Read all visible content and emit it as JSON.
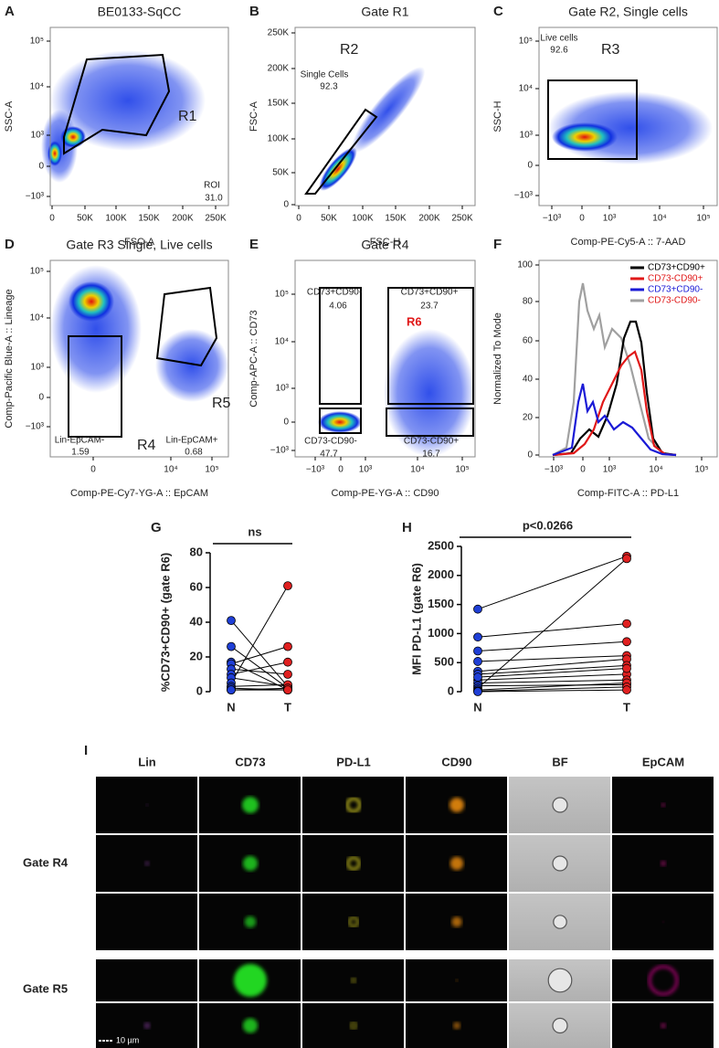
{
  "panels": [
    {
      "letter": "A",
      "title": "BE0133-SqCC",
      "x_label": "FSC-A",
      "y_label": "SSC-A",
      "xticks": [
        "0",
        "50K",
        "100K",
        "150K",
        "200K",
        "250K"
      ],
      "yticks": [
        "10⁵",
        "10⁴",
        "10³",
        "0",
        "−10³"
      ],
      "annotations": [
        "R1",
        "ROI",
        "31.0"
      ]
    },
    {
      "letter": "B",
      "title": "Gate R1",
      "x_label": "FSC-H",
      "y_label": "FSC-A",
      "xticks": [
        "0",
        "50K",
        "100K",
        "150K",
        "200K",
        "250K"
      ],
      "yticks": [
        "250K",
        "200K",
        "150K",
        "100K",
        "50K",
        "0"
      ],
      "annotations": [
        "R2",
        "Single Cells",
        "92.3"
      ]
    },
    {
      "letter": "C",
      "title": "Gate R2, Single cells",
      "x_label": "Comp-PE-Cy5-A :: 7-AAD",
      "y_label": "SSC-H",
      "xticks": [
        "−10³",
        "0",
        "10³",
        "10⁴",
        "10⁵"
      ],
      "yticks": [
        "10⁵",
        "10⁴",
        "10³",
        "0",
        "−10³"
      ],
      "annotations": [
        "Live cells",
        "92.6",
        "R3"
      ]
    },
    {
      "letter": "D",
      "title": "Gate R3 Single, Live cells",
      "x_label": "Comp-PE-Cy7-YG-A :: EpCAM",
      "y_label": "Comp-Pacific Blue-A :: Lineage",
      "xticks": [
        "0",
        "10⁴",
        "10⁵"
      ],
      "yticks": [
        "10⁵",
        "10⁴",
        "10³",
        "0",
        "−10³"
      ],
      "annotations": [
        "Lin-EpCAM-",
        "1.59",
        "R4",
        "Lin-EpCAM+",
        "0.68",
        "R5"
      ]
    },
    {
      "letter": "E",
      "title": "Gate R4",
      "x_label": "Comp-PE-YG-A :: CD90",
      "y_label": "Comp-APC-A :: CD73",
      "xticks": [
        "−10³",
        "0",
        "10³",
        "10⁴",
        "10⁵"
      ],
      "yticks": [
        "10⁵",
        "10⁴",
        "10³",
        "0",
        "−10³"
      ],
      "annotations": [
        "CD73+CD90-",
        "4.06",
        "CD73+CD90+",
        "23.7",
        "R6",
        "CD73-CD90-",
        "47.7",
        "CD73-CD90+",
        "16.7"
      ]
    },
    {
      "letter": "F",
      "title": "",
      "x_label": "Comp-FITC-A :: PD-L1",
      "y_label": "Normalized To Mode",
      "xticks": [
        "−10³",
        "0",
        "10³",
        "10⁴",
        "10⁵"
      ],
      "yticks": [
        "100",
        "80",
        "60",
        "40",
        "20",
        "0"
      ],
      "legend": [
        {
          "name": "CD73+CD90+",
          "color": "#000000"
        },
        {
          "name": "CD73-CD90+",
          "color": "#e01818"
        },
        {
          "name": "CD73+CD90-",
          "color": "#1a1ad6"
        },
        {
          "name": "CD73-CD90-",
          "color": "#a0a0a0"
        }
      ]
    }
  ],
  "paired": [
    {
      "letter": "G",
      "y_label": "%CD73+CD90+ (gate R6)",
      "stat": "ns",
      "categories": [
        "N",
        "T"
      ],
      "ylim": [
        0,
        80
      ],
      "yticks": [
        0,
        20,
        40,
        60,
        80
      ],
      "colors": [
        "#1f3fd6",
        "#e02020"
      ],
      "values": [
        [
          41,
          26,
          17,
          16,
          13,
          10,
          8,
          5,
          3,
          2,
          1,
          1
        ],
        [
          3,
          2,
          1,
          26,
          10,
          17,
          3,
          61,
          4,
          1,
          2,
          1
        ]
      ]
    },
    {
      "letter": "H",
      "y_label": "MFI PD-L1 (gate R6)",
      "stat": "p<0.0266",
      "categories": [
        "N",
        "T"
      ],
      "ylim": [
        0,
        2500
      ],
      "yticks": [
        0,
        500,
        1000,
        1500,
        2000,
        2500
      ],
      "colors": [
        "#1f3fd6",
        "#e02020"
      ],
      "values": [
        [
          1420,
          940,
          700,
          520,
          350,
          300,
          200,
          150,
          100,
          60,
          30,
          10,
          0,
          250
        ],
        [
          2330,
          1170,
          860,
          620,
          560,
          450,
          300,
          200,
          120,
          2290,
          150,
          80,
          30,
          400
        ]
      ]
    }
  ],
  "imaging": {
    "letter": "I",
    "channels": [
      "Lin",
      "CD73",
      "PD-L1",
      "CD90",
      "BF",
      "EpCAM"
    ],
    "groups": [
      "Gate R4",
      "Gate R5"
    ],
    "scale_bar": "10 µm"
  }
}
